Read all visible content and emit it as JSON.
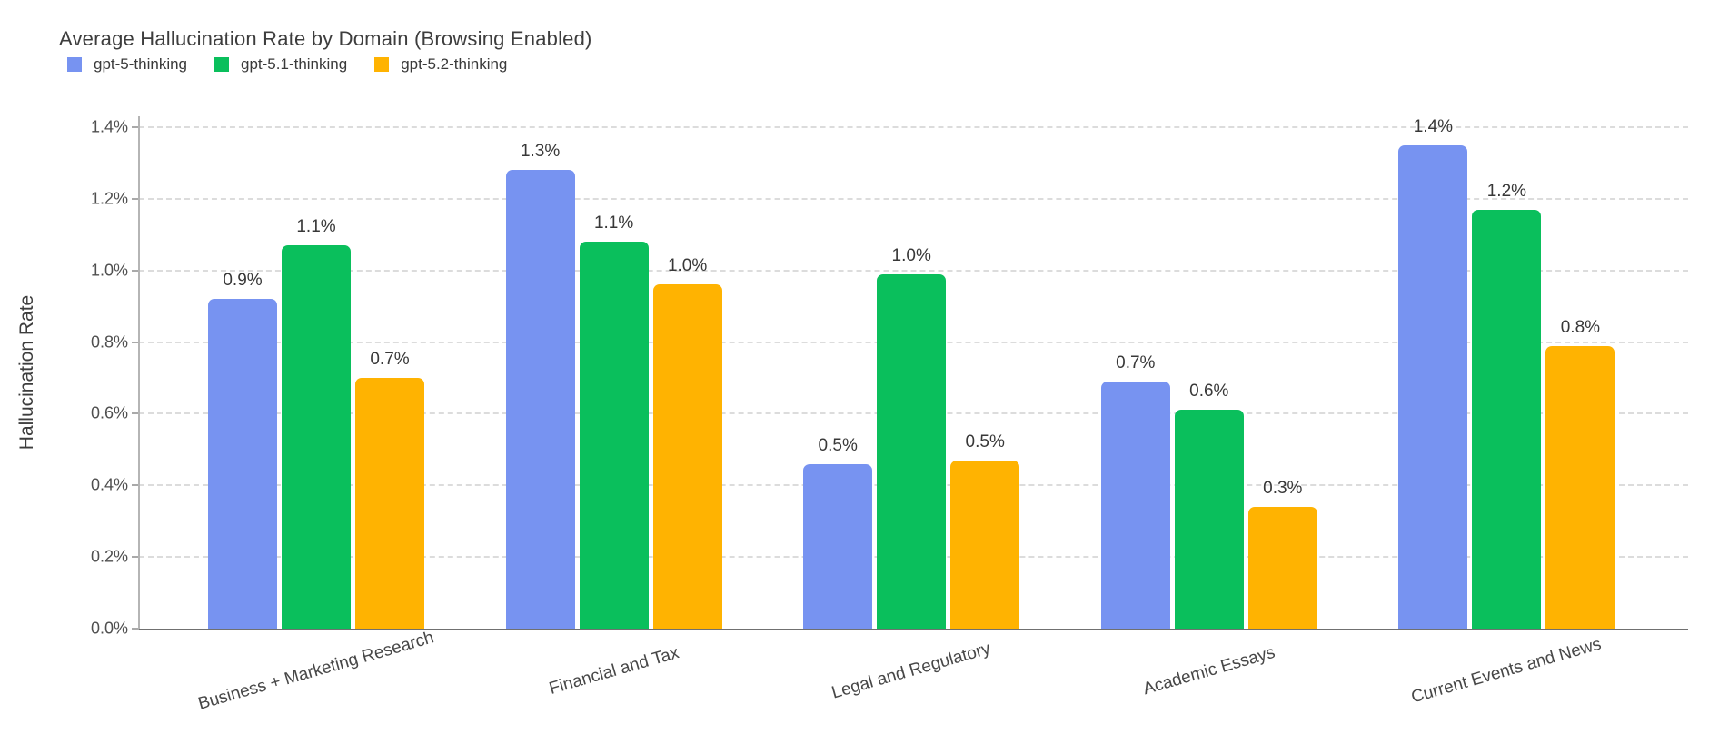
{
  "title": "Average Hallucination Rate by Domain (Browsing Enabled)",
  "legend": [
    {
      "label": "gpt-5-thinking",
      "color": "#7793F1"
    },
    {
      "label": "gpt-5.1-thinking",
      "color": "#0ABF5C"
    },
    {
      "label": "gpt-5.2-thinking",
      "color": "#FFB301"
    }
  ],
  "colors": {
    "blue": "#7793F1",
    "green": "#0ABF5C",
    "orange": "#FFB301",
    "gridline": "#dcdcdc",
    "axis_line": "#b5b5b5",
    "baseline": "#707070",
    "text_dark": "#3d3d3d"
  },
  "chart_data": {
    "type": "bar",
    "title": "Average Hallucination Rate by Domain (Browsing Enabled)",
    "xlabel": "",
    "ylabel": "Hallucination Rate",
    "categories": [
      "Business + Marketing Research",
      "Financial and Tax",
      "Legal and Regulatory",
      "Academic Essays",
      "Current Events and News"
    ],
    "series": [
      {
        "name": "gpt-5-thinking",
        "color": "#7793F1",
        "values": [
          0.92,
          1.28,
          0.46,
          0.69,
          1.35
        ],
        "labels": [
          "0.9%",
          "1.3%",
          "0.5%",
          "0.7%",
          "1.4%"
        ]
      },
      {
        "name": "gpt-5.1-thinking",
        "color": "#0ABF5C",
        "values": [
          1.07,
          1.08,
          0.99,
          0.61,
          1.17
        ],
        "labels": [
          "1.1%",
          "1.1%",
          "1.0%",
          "0.6%",
          "1.2%"
        ]
      },
      {
        "name": "gpt-5.2-thinking",
        "color": "#FFB301",
        "values": [
          0.7,
          0.96,
          0.47,
          0.34,
          0.79
        ],
        "labels": [
          "0.7%",
          "1.0%",
          "0.5%",
          "0.3%",
          "0.8%"
        ]
      }
    ],
    "ylim": [
      0,
      1.4
    ],
    "y_tick_step": 0.2,
    "y_tick_labels": [
      "0.0%",
      "0.2%",
      "0.4%",
      "0.6%",
      "0.8%",
      "1.0%",
      "1.2%",
      "1.4%"
    ],
    "grid": "horizontal-dashed",
    "legend_position": "top-left",
    "bar_value_labels_shown": true
  }
}
